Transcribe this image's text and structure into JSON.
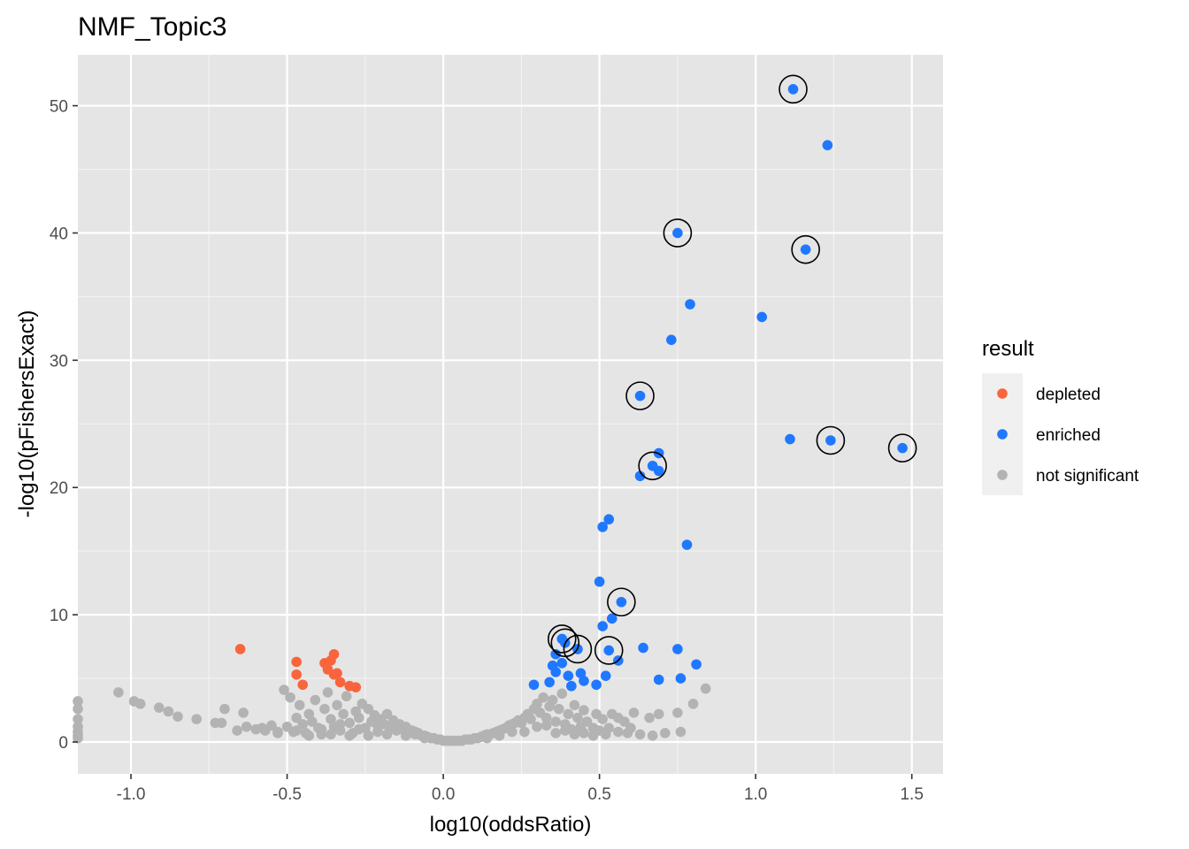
{
  "chart_data": {
    "type": "scatter",
    "title": "NMF_Topic3",
    "xlabel": "log10(oddsRatio)",
    "ylabel": "-log10(pFishersExact)",
    "xlim": [
      -1.17,
      1.6
    ],
    "ylim": [
      -2.5,
      54
    ],
    "x_ticks": [
      {
        "value": -1.0,
        "label": "-1.0"
      },
      {
        "value": -0.5,
        "label": "-0.5"
      },
      {
        "value": 0.0,
        "label": "0.0"
      },
      {
        "value": 0.5,
        "label": "0.5"
      },
      {
        "value": 1.0,
        "label": "1.0"
      },
      {
        "value": 1.5,
        "label": "1.5"
      }
    ],
    "y_ticks": [
      {
        "value": 0,
        "label": "0"
      },
      {
        "value": 10,
        "label": "10"
      },
      {
        "value": 20,
        "label": "20"
      },
      {
        "value": 30,
        "label": "30"
      },
      {
        "value": 40,
        "label": "40"
      },
      {
        "value": 50,
        "label": "50"
      }
    ],
    "grid": true,
    "panel_background": "#e5e5e5",
    "legend": {
      "title": "result",
      "position": "right",
      "entries": [
        {
          "label": "depleted",
          "color": "#f8653d"
        },
        {
          "label": "enriched",
          "color": "#1f78ff"
        },
        {
          "label": "not significant",
          "color": "#b3b3b3"
        }
      ]
    },
    "series": [
      {
        "name": "not significant",
        "color": "#b3b3b3",
        "points": [
          [
            -1.17,
            3.2
          ],
          [
            -1.17,
            2.6
          ],
          [
            -1.17,
            1.8
          ],
          [
            -1.17,
            1.2
          ],
          [
            -1.17,
            0.8
          ],
          [
            -1.17,
            0.5
          ],
          [
            -1.17,
            0.3
          ],
          [
            -1.04,
            3.9
          ],
          [
            -0.99,
            3.2
          ],
          [
            -0.97,
            3.0
          ],
          [
            -0.91,
            2.7
          ],
          [
            -0.88,
            2.4
          ],
          [
            -0.85,
            2.0
          ],
          [
            -0.79,
            1.8
          ],
          [
            -0.73,
            1.5
          ],
          [
            -0.71,
            1.5
          ],
          [
            -0.7,
            2.6
          ],
          [
            -0.64,
            2.3
          ],
          [
            -0.63,
            1.2
          ],
          [
            -0.6,
            1.0
          ],
          [
            -0.57,
            0.9
          ],
          [
            -0.55,
            1.3
          ],
          [
            -0.53,
            0.8
          ],
          [
            -0.51,
            4.1
          ],
          [
            -0.5,
            1.2
          ],
          [
            -0.49,
            3.5
          ],
          [
            -0.48,
            0.8
          ],
          [
            -0.47,
            1.9
          ],
          [
            -0.46,
            2.9
          ],
          [
            -0.45,
            1.4
          ],
          [
            -0.44,
            0.7
          ],
          [
            -0.43,
            2.2
          ],
          [
            -0.42,
            1.6
          ],
          [
            -0.41,
            3.3
          ],
          [
            -0.4,
            1.1
          ],
          [
            -0.39,
            0.6
          ],
          [
            -0.38,
            2.6
          ],
          [
            -0.37,
            3.9
          ],
          [
            -0.36,
            1.8
          ],
          [
            -0.35,
            1.2
          ],
          [
            -0.34,
            2.9
          ],
          [
            -0.33,
            0.9
          ],
          [
            -0.32,
            2.2
          ],
          [
            -0.31,
            3.6
          ],
          [
            -0.3,
            1.5
          ],
          [
            -0.29,
            0.7
          ],
          [
            -0.28,
            2.4
          ],
          [
            -0.27,
            1.9
          ],
          [
            -0.26,
            3.0
          ],
          [
            -0.25,
            1.1
          ],
          [
            -0.24,
            2.6
          ],
          [
            -0.23,
            1.6
          ],
          [
            -0.22,
            2.1
          ],
          [
            -0.21,
            0.8
          ],
          [
            -0.2,
            1.8
          ],
          [
            -0.19,
            1.4
          ],
          [
            -0.18,
            2.2
          ],
          [
            -0.17,
            1.1
          ],
          [
            -0.16,
            1.7
          ],
          [
            -0.15,
            0.9
          ],
          [
            -0.14,
            1.4
          ],
          [
            -0.13,
            1.0
          ],
          [
            -0.12,
            1.2
          ],
          [
            -0.11,
            0.7
          ],
          [
            -0.1,
            0.9
          ],
          [
            -0.09,
            0.6
          ],
          [
            -0.08,
            0.7
          ],
          [
            -0.07,
            0.5
          ],
          [
            -0.06,
            0.5
          ],
          [
            -0.05,
            0.4
          ],
          [
            -0.04,
            0.3
          ],
          [
            -0.03,
            0.3
          ],
          [
            -0.02,
            0.2
          ],
          [
            -0.01,
            0.2
          ],
          [
            0.0,
            0.1
          ],
          [
            0.01,
            0.1
          ],
          [
            0.02,
            0.1
          ],
          [
            0.03,
            0.1
          ],
          [
            0.04,
            0.1
          ],
          [
            0.05,
            0.1
          ],
          [
            0.06,
            0.1
          ],
          [
            0.07,
            0.2
          ],
          [
            0.08,
            0.2
          ],
          [
            0.09,
            0.2
          ],
          [
            0.1,
            0.3
          ],
          [
            0.11,
            0.3
          ],
          [
            0.12,
            0.4
          ],
          [
            0.13,
            0.5
          ],
          [
            0.14,
            0.6
          ],
          [
            0.15,
            0.6
          ],
          [
            0.16,
            0.7
          ],
          [
            0.17,
            0.8
          ],
          [
            0.18,
            0.9
          ],
          [
            0.19,
            1.0
          ],
          [
            0.2,
            1.1
          ],
          [
            0.21,
            1.3
          ],
          [
            0.22,
            1.4
          ],
          [
            0.23,
            1.5
          ],
          [
            0.24,
            1.7
          ],
          [
            0.25,
            1.5
          ],
          [
            0.26,
            1.9
          ],
          [
            0.27,
            2.2
          ],
          [
            0.28,
            1.8
          ],
          [
            0.29,
            2.6
          ],
          [
            0.3,
            3.0
          ],
          [
            0.31,
            2.3
          ],
          [
            0.32,
            3.5
          ],
          [
            0.33,
            1.9
          ],
          [
            0.34,
            2.8
          ],
          [
            0.35,
            3.3
          ],
          [
            0.36,
            1.6
          ],
          [
            0.37,
            2.6
          ],
          [
            0.38,
            3.8
          ],
          [
            0.39,
            1.4
          ],
          [
            0.4,
            2.2
          ],
          [
            0.41,
            1.0
          ],
          [
            0.42,
            2.9
          ],
          [
            0.43,
            1.9
          ],
          [
            0.44,
            1.2
          ],
          [
            0.45,
            2.5
          ],
          [
            0.46,
            1.6
          ],
          [
            0.48,
            1.1
          ],
          [
            0.49,
            2.2
          ],
          [
            0.5,
            0.9
          ],
          [
            0.51,
            1.8
          ],
          [
            0.53,
            1.1
          ],
          [
            0.54,
            2.2
          ],
          [
            0.56,
            1.9
          ],
          [
            0.58,
            1.6
          ],
          [
            0.6,
            1.1
          ],
          [
            0.61,
            2.3
          ],
          [
            0.66,
            1.9
          ],
          [
            0.69,
            2.2
          ],
          [
            0.75,
            2.3
          ],
          [
            0.8,
            3.0
          ],
          [
            0.84,
            4.2
          ],
          [
            -0.66,
            0.9
          ],
          [
            -0.58,
            1.1
          ],
          [
            -0.53,
            0.7
          ],
          [
            -0.47,
            0.9
          ],
          [
            -0.43,
            0.5
          ],
          [
            -0.39,
            1.0
          ],
          [
            -0.36,
            0.6
          ],
          [
            -0.33,
            1.4
          ],
          [
            -0.3,
            0.5
          ],
          [
            -0.27,
            1.0
          ],
          [
            -0.24,
            0.5
          ],
          [
            -0.21,
            1.3
          ],
          [
            -0.18,
            0.6
          ],
          [
            -0.15,
            1.1
          ],
          [
            -0.12,
            0.5
          ],
          [
            -0.09,
            0.8
          ],
          [
            -0.06,
            0.3
          ],
          [
            0.14,
            0.3
          ],
          [
            0.18,
            0.5
          ],
          [
            0.22,
            0.8
          ],
          [
            0.26,
            0.8
          ],
          [
            0.3,
            1.2
          ],
          [
            0.33,
            1.3
          ],
          [
            0.36,
            0.7
          ],
          [
            0.39,
            0.9
          ],
          [
            0.42,
            0.6
          ],
          [
            0.45,
            0.7
          ],
          [
            0.48,
            0.5
          ],
          [
            0.52,
            0.6
          ],
          [
            0.56,
            0.8
          ],
          [
            0.59,
            0.7
          ],
          [
            0.63,
            0.6
          ],
          [
            0.67,
            0.5
          ],
          [
            0.71,
            0.7
          ],
          [
            0.76,
            0.8
          ]
        ]
      },
      {
        "name": "depleted",
        "color": "#f8653d",
        "points": [
          [
            -0.65,
            7.3
          ],
          [
            -0.47,
            6.3
          ],
          [
            -0.47,
            5.3
          ],
          [
            -0.45,
            4.5
          ],
          [
            -0.38,
            6.2
          ],
          [
            -0.37,
            5.7
          ],
          [
            -0.36,
            6.4
          ],
          [
            -0.35,
            6.9
          ],
          [
            -0.35,
            5.3
          ],
          [
            -0.34,
            5.4
          ],
          [
            -0.33,
            4.7
          ],
          [
            -0.3,
            4.4
          ],
          [
            -0.28,
            4.3
          ]
        ]
      },
      {
        "name": "enriched",
        "color": "#1f78ff",
        "points": [
          [
            1.12,
            51.3
          ],
          [
            1.23,
            46.9
          ],
          [
            0.75,
            40.0
          ],
          [
            1.16,
            38.7
          ],
          [
            0.79,
            34.4
          ],
          [
            1.02,
            33.4
          ],
          [
            0.73,
            31.6
          ],
          [
            0.63,
            27.2
          ],
          [
            1.11,
            23.8
          ],
          [
            1.24,
            23.7
          ],
          [
            1.47,
            23.1
          ],
          [
            0.69,
            22.7
          ],
          [
            0.67,
            21.7
          ],
          [
            0.69,
            21.3
          ],
          [
            0.63,
            20.9
          ],
          [
            0.53,
            17.5
          ],
          [
            0.51,
            16.9
          ],
          [
            0.78,
            15.5
          ],
          [
            0.5,
            12.6
          ],
          [
            0.57,
            11.0
          ],
          [
            0.54,
            9.7
          ],
          [
            0.51,
            9.1
          ],
          [
            0.38,
            8.1
          ],
          [
            0.39,
            7.8
          ],
          [
            0.43,
            7.3
          ],
          [
            0.53,
            7.2
          ],
          [
            0.64,
            7.4
          ],
          [
            0.75,
            7.3
          ],
          [
            0.36,
            6.9
          ],
          [
            0.38,
            6.2
          ],
          [
            0.56,
            6.4
          ],
          [
            0.81,
            6.1
          ],
          [
            0.35,
            6.0
          ],
          [
            0.36,
            5.5
          ],
          [
            0.4,
            5.2
          ],
          [
            0.44,
            5.4
          ],
          [
            0.52,
            5.2
          ],
          [
            0.69,
            4.9
          ],
          [
            0.76,
            5.0
          ],
          [
            0.34,
            4.7
          ],
          [
            0.45,
            4.8
          ],
          [
            0.49,
            4.5
          ],
          [
            0.41,
            4.4
          ],
          [
            0.29,
            4.5
          ]
        ]
      }
    ],
    "highlighted": [
      [
        1.12,
        51.3
      ],
      [
        0.75,
        40.0
      ],
      [
        1.16,
        38.7
      ],
      [
        0.63,
        27.2
      ],
      [
        1.24,
        23.7
      ],
      [
        1.47,
        23.1
      ],
      [
        0.67,
        21.7
      ],
      [
        0.57,
        11.0
      ],
      [
        0.38,
        8.1
      ],
      [
        0.39,
        7.8
      ],
      [
        0.43,
        7.3
      ],
      [
        0.53,
        7.2
      ]
    ]
  }
}
